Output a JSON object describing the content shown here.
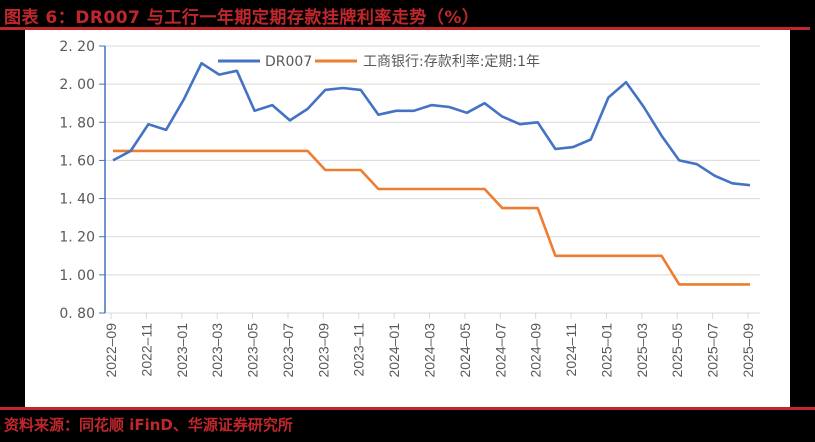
{
  "header": {
    "title": "图表 6：DR007 与工行一年期定期存款挂牌利率走势（%）"
  },
  "footer": {
    "source": "资料来源：同花顺 iFinD、华源证券研究所"
  },
  "colors": {
    "accent_red": "#c0272d",
    "series_dr007": "#4472c4",
    "series_icbc": "#ed7d31",
    "axis": "#4472c4",
    "grid": "#d9d9d9"
  },
  "chart_data": {
    "type": "line",
    "title": "DR007 与工行一年期定期存款挂牌利率走势（%）",
    "xlabel": "",
    "ylabel": "",
    "ylim": [
      0.8,
      2.2
    ],
    "yticks": [
      "2.20",
      "2.00",
      "1.80",
      "1.60",
      "1.40",
      "1.20",
      "1.00",
      "0.80"
    ],
    "grid": true,
    "legend_position": "top",
    "x_tick_labels": [
      "2022-09",
      "2022-11",
      "2023-01",
      "2023-03",
      "2023-05",
      "2023-07",
      "2023-09",
      "2023-11",
      "2024-01",
      "2024-03",
      "2024-05",
      "2024-07",
      "2024-09",
      "2024-11",
      "2025-01",
      "2025-03",
      "2025-05",
      "2025-07",
      "2025-09"
    ],
    "x": [
      "2022-09",
      "2022-10",
      "2022-11",
      "2022-12",
      "2023-01",
      "2023-02",
      "2023-03",
      "2023-04",
      "2023-05",
      "2023-06",
      "2023-07",
      "2023-08",
      "2023-09",
      "2023-10",
      "2023-11",
      "2023-12",
      "2024-01",
      "2024-02",
      "2024-03",
      "2024-04",
      "2024-05",
      "2024-06",
      "2024-07",
      "2024-08",
      "2024-09",
      "2024-10",
      "2024-11",
      "2024-12",
      "2025-01",
      "2025-02",
      "2025-03",
      "2025-04",
      "2025-05",
      "2025-06",
      "2025-07",
      "2025-08",
      "2025-09"
    ],
    "series": [
      {
        "name": "DR007",
        "values": [
          1.6,
          1.65,
          1.79,
          1.76,
          1.92,
          2.11,
          2.05,
          2.07,
          1.86,
          1.89,
          1.81,
          1.87,
          1.97,
          1.98,
          1.97,
          1.84,
          1.86,
          1.86,
          1.89,
          1.88,
          1.85,
          1.9,
          1.83,
          1.79,
          1.8,
          1.66,
          1.67,
          1.71,
          1.93,
          2.01,
          1.88,
          1.73,
          1.6,
          1.58,
          1.52,
          1.48,
          1.47
        ]
      },
      {
        "name": "工商银行:存款利率:定期:1年",
        "values": [
          1.65,
          1.65,
          1.65,
          1.65,
          1.65,
          1.65,
          1.65,
          1.65,
          1.65,
          1.65,
          1.65,
          1.65,
          1.55,
          1.55,
          1.55,
          1.45,
          1.45,
          1.45,
          1.45,
          1.45,
          1.45,
          1.45,
          1.35,
          1.35,
          1.35,
          1.1,
          1.1,
          1.1,
          1.1,
          1.1,
          1.1,
          1.1,
          0.95,
          0.95,
          0.95,
          0.95,
          0.95
        ]
      }
    ]
  }
}
